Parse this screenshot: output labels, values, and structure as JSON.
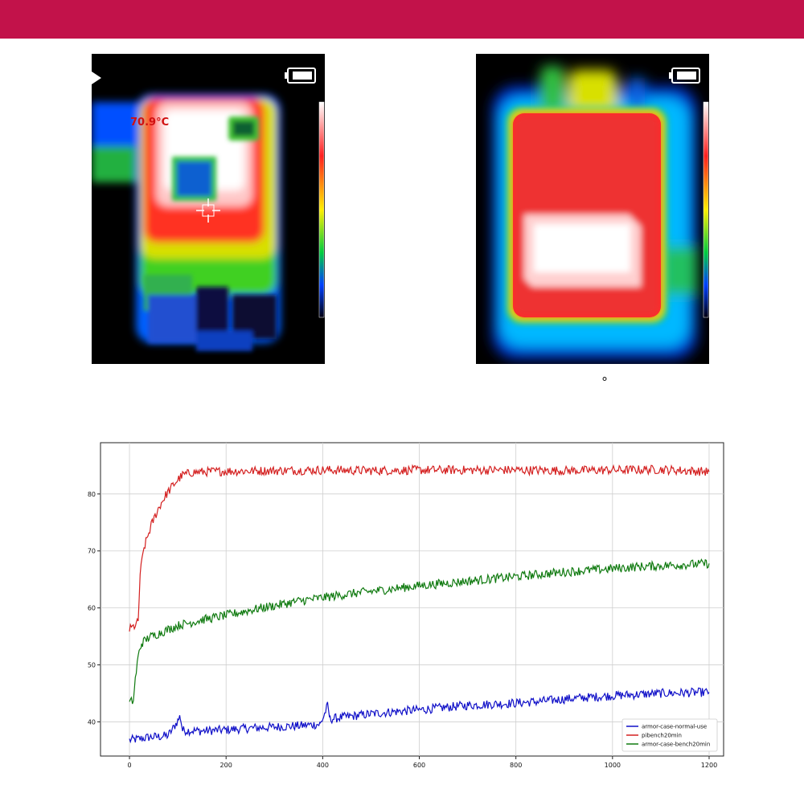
{
  "thermal_images": {
    "left": {
      "spot_temperature": "70.9°C"
    }
  },
  "caption_symbol": "°",
  "chart_data": {
    "type": "line",
    "xlim": [
      -60,
      1230
    ],
    "ylim": [
      34,
      89
    ],
    "x_ticks": [
      0,
      200,
      400,
      600,
      800,
      1000,
      1200
    ],
    "y_ticks": [
      40,
      50,
      60,
      70,
      80
    ],
    "grid": true,
    "legend_position": "lower-right",
    "series": [
      {
        "name": "armor-case-normal-use",
        "color": "#1010c8",
        "points": [
          [
            0,
            36.8
          ],
          [
            20,
            37.0
          ],
          [
            40,
            37.3
          ],
          [
            60,
            37.4
          ],
          [
            80,
            37.6
          ],
          [
            90,
            38.8
          ],
          [
            100,
            40.2
          ],
          [
            105,
            41.0
          ],
          [
            110,
            38.5
          ],
          [
            150,
            38.4
          ],
          [
            200,
            38.6
          ],
          [
            250,
            38.9
          ],
          [
            300,
            39.1
          ],
          [
            350,
            39.3
          ],
          [
            395,
            39.6
          ],
          [
            400,
            40.5
          ],
          [
            410,
            42.8
          ],
          [
            415,
            40.5
          ],
          [
            450,
            40.9
          ],
          [
            500,
            41.4
          ],
          [
            550,
            41.8
          ],
          [
            600,
            42.1
          ],
          [
            650,
            42.5
          ],
          [
            700,
            42.9
          ],
          [
            750,
            43.1
          ],
          [
            800,
            43.3
          ],
          [
            850,
            43.6
          ],
          [
            900,
            44.0
          ],
          [
            950,
            44.3
          ],
          [
            1000,
            44.6
          ],
          [
            1050,
            44.8
          ],
          [
            1100,
            45.0
          ],
          [
            1150,
            45.1
          ],
          [
            1200,
            45.2
          ]
        ]
      },
      {
        "name": "pibench20min",
        "color": "#d42020",
        "points": [
          [
            0,
            56.2
          ],
          [
            10,
            56.8
          ],
          [
            18,
            57.5
          ],
          [
            22,
            66.0
          ],
          [
            30,
            70.5
          ],
          [
            45,
            74.5
          ],
          [
            60,
            77.5
          ],
          [
            75,
            79.8
          ],
          [
            90,
            81.5
          ],
          [
            100,
            82.5
          ],
          [
            110,
            83.3
          ],
          [
            130,
            83.8
          ],
          [
            160,
            83.9
          ],
          [
            200,
            84.0
          ],
          [
            300,
            84.1
          ],
          [
            400,
            84.2
          ],
          [
            500,
            84.1
          ],
          [
            600,
            84.2
          ],
          [
            700,
            84.2
          ],
          [
            800,
            84.2
          ],
          [
            900,
            84.1
          ],
          [
            1000,
            84.2
          ],
          [
            1100,
            84.3
          ],
          [
            1200,
            83.9
          ]
        ]
      },
      {
        "name": "armor-case-bench20min",
        "color": "#0f7a0f",
        "points": [
          [
            0,
            43.3
          ],
          [
            8,
            43.8
          ],
          [
            12,
            47.5
          ],
          [
            18,
            51.5
          ],
          [
            25,
            53.8
          ],
          [
            40,
            54.8
          ],
          [
            60,
            55.5
          ],
          [
            80,
            56.2
          ],
          [
            100,
            56.9
          ],
          [
            150,
            57.9
          ],
          [
            200,
            58.7
          ],
          [
            250,
            59.6
          ],
          [
            300,
            60.4
          ],
          [
            350,
            61.2
          ],
          [
            400,
            61.8
          ],
          [
            450,
            62.4
          ],
          [
            500,
            62.9
          ],
          [
            550,
            63.4
          ],
          [
            600,
            63.9
          ],
          [
            650,
            64.3
          ],
          [
            700,
            64.7
          ],
          [
            750,
            65.1
          ],
          [
            800,
            65.5
          ],
          [
            850,
            65.9
          ],
          [
            900,
            66.3
          ],
          [
            950,
            66.6
          ],
          [
            1000,
            66.9
          ],
          [
            1050,
            67.2
          ],
          [
            1100,
            67.4
          ],
          [
            1150,
            67.6
          ],
          [
            1200,
            67.8
          ]
        ]
      }
    ]
  }
}
